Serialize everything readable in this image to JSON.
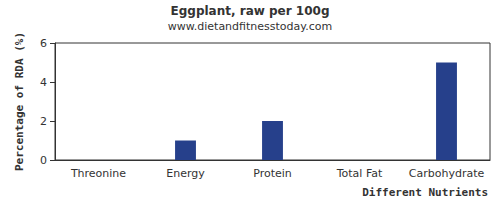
{
  "chart_data": {
    "type": "bar",
    "title": "Eggplant, raw per 100g",
    "subtitle": "www.dietandfitnesstoday.com",
    "x_label": "Different Nutrients",
    "y_label": "Percentage of RDA (%)",
    "categories": [
      "Threonine",
      "Energy",
      "Protein",
      "Total Fat",
      "Carbohydrate"
    ],
    "values": [
      0,
      1,
      2,
      0,
      5
    ],
    "color": "#26408b",
    "ylim": [
      0,
      6
    ],
    "yticks": [
      0,
      2,
      4,
      6
    ],
    "grid": false
  }
}
